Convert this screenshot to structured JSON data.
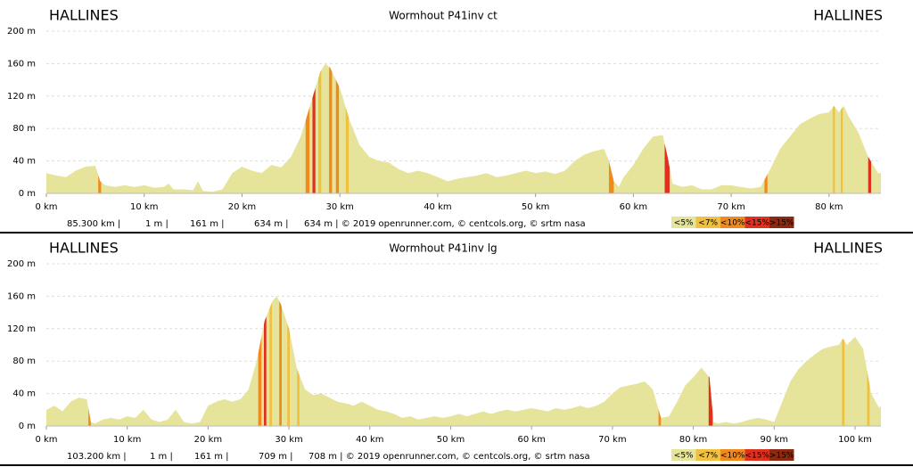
{
  "chart_data": [
    {
      "type": "area",
      "title": "Wormhout P41inv ct",
      "start_label": "HALLINES",
      "end_label": "HALLINES",
      "x": [
        0,
        1,
        2,
        3,
        4,
        5,
        5.5,
        6,
        7,
        8,
        9,
        10,
        11,
        12,
        12.5,
        13,
        14,
        15,
        15.5,
        16,
        17,
        18,
        19,
        20,
        21,
        22,
        23,
        24,
        25,
        26,
        27,
        28,
        28.5,
        29,
        30,
        31,
        32,
        33,
        34,
        35,
        36,
        37,
        38,
        39,
        40,
        41,
        42,
        43,
        44,
        45,
        46,
        47,
        48,
        49,
        50,
        51,
        52,
        53,
        54,
        55,
        56,
        57,
        57.5,
        58,
        58.5,
        59,
        60,
        61,
        62,
        63,
        63.5,
        64,
        65,
        66,
        67,
        68,
        69,
        70,
        71,
        72,
        73,
        74,
        75,
        76,
        77,
        78,
        79,
        80,
        80.5,
        81,
        81.5,
        82,
        83,
        84,
        85,
        85.3
      ],
      "values": [
        25,
        22,
        20,
        28,
        33,
        34,
        15,
        10,
        8,
        10,
        8,
        10,
        7,
        8,
        12,
        5,
        5,
        4,
        15,
        3,
        2,
        5,
        25,
        33,
        28,
        25,
        35,
        32,
        45,
        70,
        110,
        150,
        160,
        155,
        130,
        90,
        60,
        45,
        40,
        38,
        30,
        25,
        28,
        25,
        20,
        15,
        18,
        20,
        22,
        25,
        20,
        22,
        25,
        28,
        25,
        27,
        24,
        28,
        40,
        48,
        52,
        55,
        40,
        15,
        8,
        20,
        35,
        55,
        70,
        72,
        45,
        12,
        8,
        10,
        5,
        5,
        10,
        10,
        8,
        6,
        8,
        30,
        55,
        70,
        85,
        92,
        98,
        100,
        108,
        100,
        108,
        95,
        75,
        45,
        25,
        25
      ],
      "area_color": "#e5e49a",
      "steep": [
        {
          "x0": 5.3,
          "x1": 5.6,
          "color": "#f08a1e"
        },
        {
          "x0": 26.5,
          "x1": 26.9,
          "color": "#f08a1e"
        },
        {
          "x0": 27.2,
          "x1": 27.5,
          "color": "#e0301e"
        },
        {
          "x0": 27.8,
          "x1": 28.1,
          "color": "#f0c040"
        },
        {
          "x0": 28.9,
          "x1": 29.2,
          "color": "#f08a1e"
        },
        {
          "x0": 29.6,
          "x1": 29.9,
          "color": "#f08a1e"
        },
        {
          "x0": 30.6,
          "x1": 30.9,
          "color": "#f0c040"
        },
        {
          "x0": 57.5,
          "x1": 58,
          "color": "#f08a1e"
        },
        {
          "x0": 63.2,
          "x1": 63.7,
          "color": "#e0301e"
        },
        {
          "x0": 73.4,
          "x1": 73.7,
          "color": "#f08a1e"
        },
        {
          "x0": 80.4,
          "x1": 80.6,
          "color": "#f0c040"
        },
        {
          "x0": 81.2,
          "x1": 81.4,
          "color": "#f0c040"
        },
        {
          "x0": 84,
          "x1": 84.3,
          "color": "#e0301e"
        }
      ],
      "xlim": [
        0,
        85.3
      ],
      "ylim": [
        0,
        200
      ],
      "xticks": [
        {
          "value": 0,
          "label": "0 km"
        },
        {
          "value": 10,
          "label": "10 km"
        },
        {
          "value": 20,
          "label": "20 km"
        },
        {
          "value": 30,
          "label": "30 km"
        },
        {
          "value": 40,
          "label": "40 km"
        },
        {
          "value": 50,
          "label": "50 km"
        },
        {
          "value": 60,
          "label": "60 km"
        },
        {
          "value": 70,
          "label": "70 km"
        },
        {
          "value": 80,
          "label": "80 km"
        }
      ],
      "yticks": [
        {
          "value": 0,
          "label": "0 m"
        },
        {
          "value": 40,
          "label": "40 m"
        },
        {
          "value": 80,
          "label": "80 m"
        },
        {
          "value": 120,
          "label": "120 m"
        },
        {
          "value": 160,
          "label": "160 m"
        },
        {
          "value": 200,
          "label": "200 m"
        }
      ],
      "grid": true,
      "stats": [
        "85.300 km |",
        "1 m |",
        "161 m |",
        "634 m |",
        "634 m | © 2019 openrunner.com, © centcols.org, © srtm nasa"
      ],
      "legend": [
        {
          "label": "<5%",
          "color": "#e5e49a"
        },
        {
          "label": "<7%",
          "color": "#f0c040"
        },
        {
          "label": "<10%",
          "color": "#f08a1e"
        },
        {
          "label": "<15%",
          "color": "#e0301e"
        },
        {
          "label": ">15%",
          "color": "#8b2a10"
        }
      ]
    },
    {
      "type": "area",
      "title": "Wormhout P41inv lg",
      "start_label": "HALLINES",
      "end_label": "HALLINES",
      "x": [
        0,
        1,
        2,
        3,
        4,
        5,
        5.5,
        6,
        7,
        8,
        9,
        10,
        11,
        12,
        13,
        14,
        15,
        16,
        17,
        18,
        19,
        20,
        21,
        22,
        23,
        24,
        25,
        26,
        27,
        28,
        28.5,
        29,
        30,
        31,
        32,
        33,
        34,
        35,
        36,
        37,
        38,
        39,
        40,
        41,
        42,
        43,
        44,
        45,
        46,
        47,
        48,
        49,
        50,
        51,
        52,
        53,
        54,
        55,
        56,
        57,
        58,
        59,
        60,
        61,
        62,
        63,
        64,
        65,
        66,
        67,
        68,
        69,
        70,
        71,
        72,
        73,
        74,
        75,
        76,
        77,
        78,
        79,
        80,
        81,
        82,
        82.5,
        83,
        84,
        85,
        86,
        87,
        88,
        89,
        90,
        91,
        92,
        93,
        94,
        95,
        96,
        97,
        98,
        98.5,
        99,
        100,
        101,
        102,
        103,
        103.2
      ],
      "values": [
        20,
        25,
        18,
        30,
        35,
        33,
        5,
        3,
        8,
        10,
        8,
        12,
        10,
        20,
        8,
        5,
        8,
        20,
        5,
        3,
        5,
        25,
        30,
        33,
        30,
        33,
        45,
        80,
        130,
        155,
        160,
        150,
        120,
        70,
        45,
        38,
        40,
        35,
        30,
        28,
        25,
        30,
        25,
        20,
        18,
        15,
        10,
        12,
        8,
        10,
        12,
        10,
        12,
        15,
        12,
        15,
        18,
        15,
        18,
        20,
        18,
        20,
        22,
        20,
        18,
        22,
        20,
        22,
        25,
        22,
        25,
        30,
        40,
        48,
        50,
        52,
        55,
        45,
        10,
        12,
        30,
        50,
        60,
        72,
        60,
        5,
        3,
        5,
        3,
        5,
        8,
        10,
        8,
        5,
        30,
        55,
        70,
        80,
        88,
        95,
        98,
        100,
        108,
        100,
        110,
        95,
        40,
        22,
        25
      ],
      "area_color": "#e5e49a",
      "steep": [
        {
          "x0": 5.2,
          "x1": 5.5,
          "color": "#f08a1e"
        },
        {
          "x0": 26.2,
          "x1": 26.6,
          "color": "#f08a1e"
        },
        {
          "x0": 26.9,
          "x1": 27.2,
          "color": "#e0301e"
        },
        {
          "x0": 27.6,
          "x1": 27.9,
          "color": "#f0c040"
        },
        {
          "x0": 28.8,
          "x1": 29.1,
          "color": "#f08a1e"
        },
        {
          "x0": 29.8,
          "x1": 30.1,
          "color": "#f0c040"
        },
        {
          "x0": 31,
          "x1": 31.3,
          "color": "#f0c040"
        },
        {
          "x0": 75.7,
          "x1": 76,
          "color": "#f08a1e"
        },
        {
          "x0": 81.9,
          "x1": 82.4,
          "color": "#e0301e"
        },
        {
          "x0": 98.4,
          "x1": 98.7,
          "color": "#f0c040"
        },
        {
          "x0": 101.5,
          "x1": 101.8,
          "color": "#f0c040"
        }
      ],
      "xlim": [
        0,
        103.2
      ],
      "ylim": [
        0,
        200
      ],
      "xticks": [
        {
          "value": 0,
          "label": "0 km"
        },
        {
          "value": 10,
          "label": "10 km"
        },
        {
          "value": 20,
          "label": "20 km"
        },
        {
          "value": 30,
          "label": "30 km"
        },
        {
          "value": 40,
          "label": "40 km"
        },
        {
          "value": 50,
          "label": "50 km"
        },
        {
          "value": 60,
          "label": "60 km"
        },
        {
          "value": 70,
          "label": "70 km"
        },
        {
          "value": 80,
          "label": "80 km"
        },
        {
          "value": 90,
          "label": "90 km"
        },
        {
          "value": 100,
          "label": "100 km"
        }
      ],
      "yticks": [
        {
          "value": 0,
          "label": "0 m"
        },
        {
          "value": 40,
          "label": "40 m"
        },
        {
          "value": 80,
          "label": "80 m"
        },
        {
          "value": 120,
          "label": "120 m"
        },
        {
          "value": 160,
          "label": "160 m"
        },
        {
          "value": 200,
          "label": "200 m"
        }
      ],
      "grid": true,
      "stats": [
        "103.200 km |",
        "1 m |",
        "161 m |",
        "709 m |",
        "708 m | © 2019 openrunner.com, © centcols.org, © srtm nasa"
      ],
      "legend": [
        {
          "label": "<5%",
          "color": "#e5e49a"
        },
        {
          "label": "<7%",
          "color": "#f0c040"
        },
        {
          "label": "<10%",
          "color": "#f08a1e"
        },
        {
          "label": "<15%",
          "color": "#e0301e"
        },
        {
          "label": ">15%",
          "color": "#8b2a10"
        }
      ]
    }
  ]
}
